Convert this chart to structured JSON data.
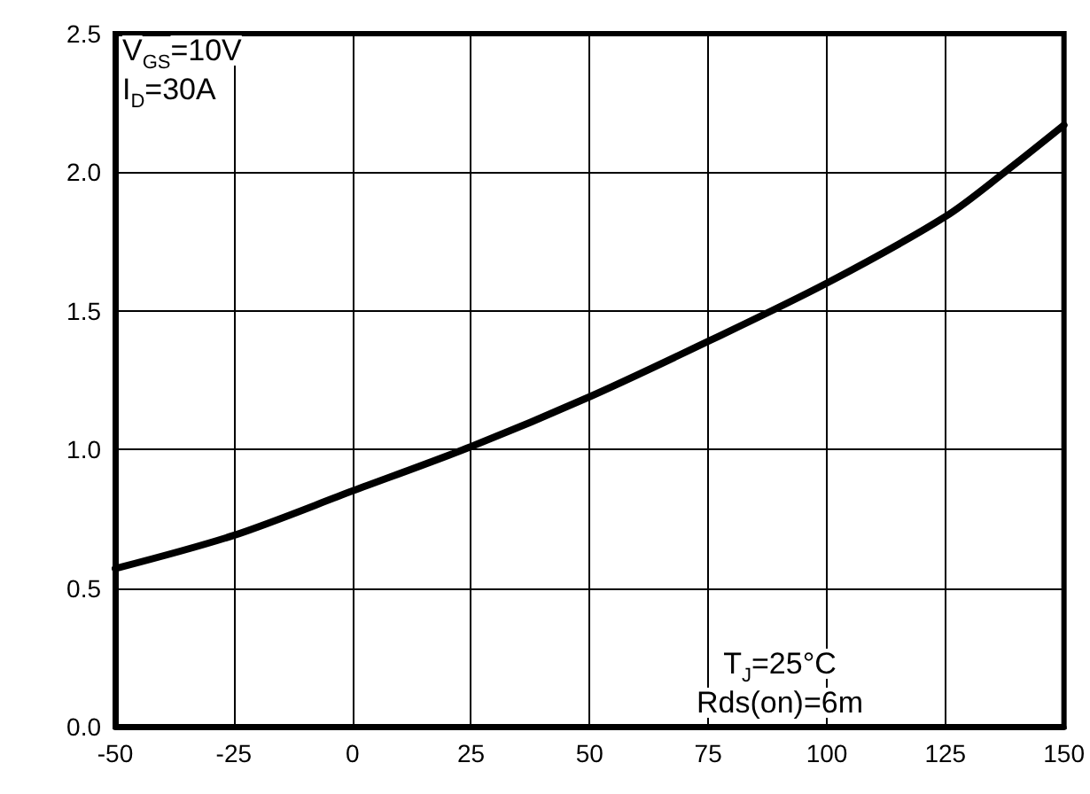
{
  "chart_data": {
    "type": "line",
    "x": [
      -50,
      -25,
      0,
      25,
      50,
      75,
      100,
      125,
      137.5,
      150
    ],
    "series": [
      {
        "color": "#000000",
        "values": [
          0.57,
          0.69,
          0.85,
          1.01,
          1.19,
          1.39,
          1.6,
          1.84,
          2.0,
          2.17
        ]
      }
    ],
    "xlim": [
      -50,
      150
    ],
    "xticks": [
      -50,
      -25,
      0,
      25,
      50,
      75,
      100,
      125,
      150
    ],
    "ylim": [
      0,
      2.5
    ],
    "yticks": [
      {
        "value": 0,
        "label": "0.0"
      },
      {
        "value": 0.5,
        "label": "0.5"
      },
      {
        "value": 1,
        "label": "1.0"
      },
      {
        "value": 1.5,
        "label": "1.5"
      },
      {
        "value": 2,
        "label": "2.0"
      },
      {
        "value": 2.5,
        "label": "2.5"
      }
    ],
    "grid": true,
    "marker": "none",
    "line_style": "solid",
    "annotations": [
      "V$_{GS}$=10V",
      "I$_{D}$=30A",
      "T$_{J}$=25°C",
      "Rds(on)=6m"
    ]
  }
}
